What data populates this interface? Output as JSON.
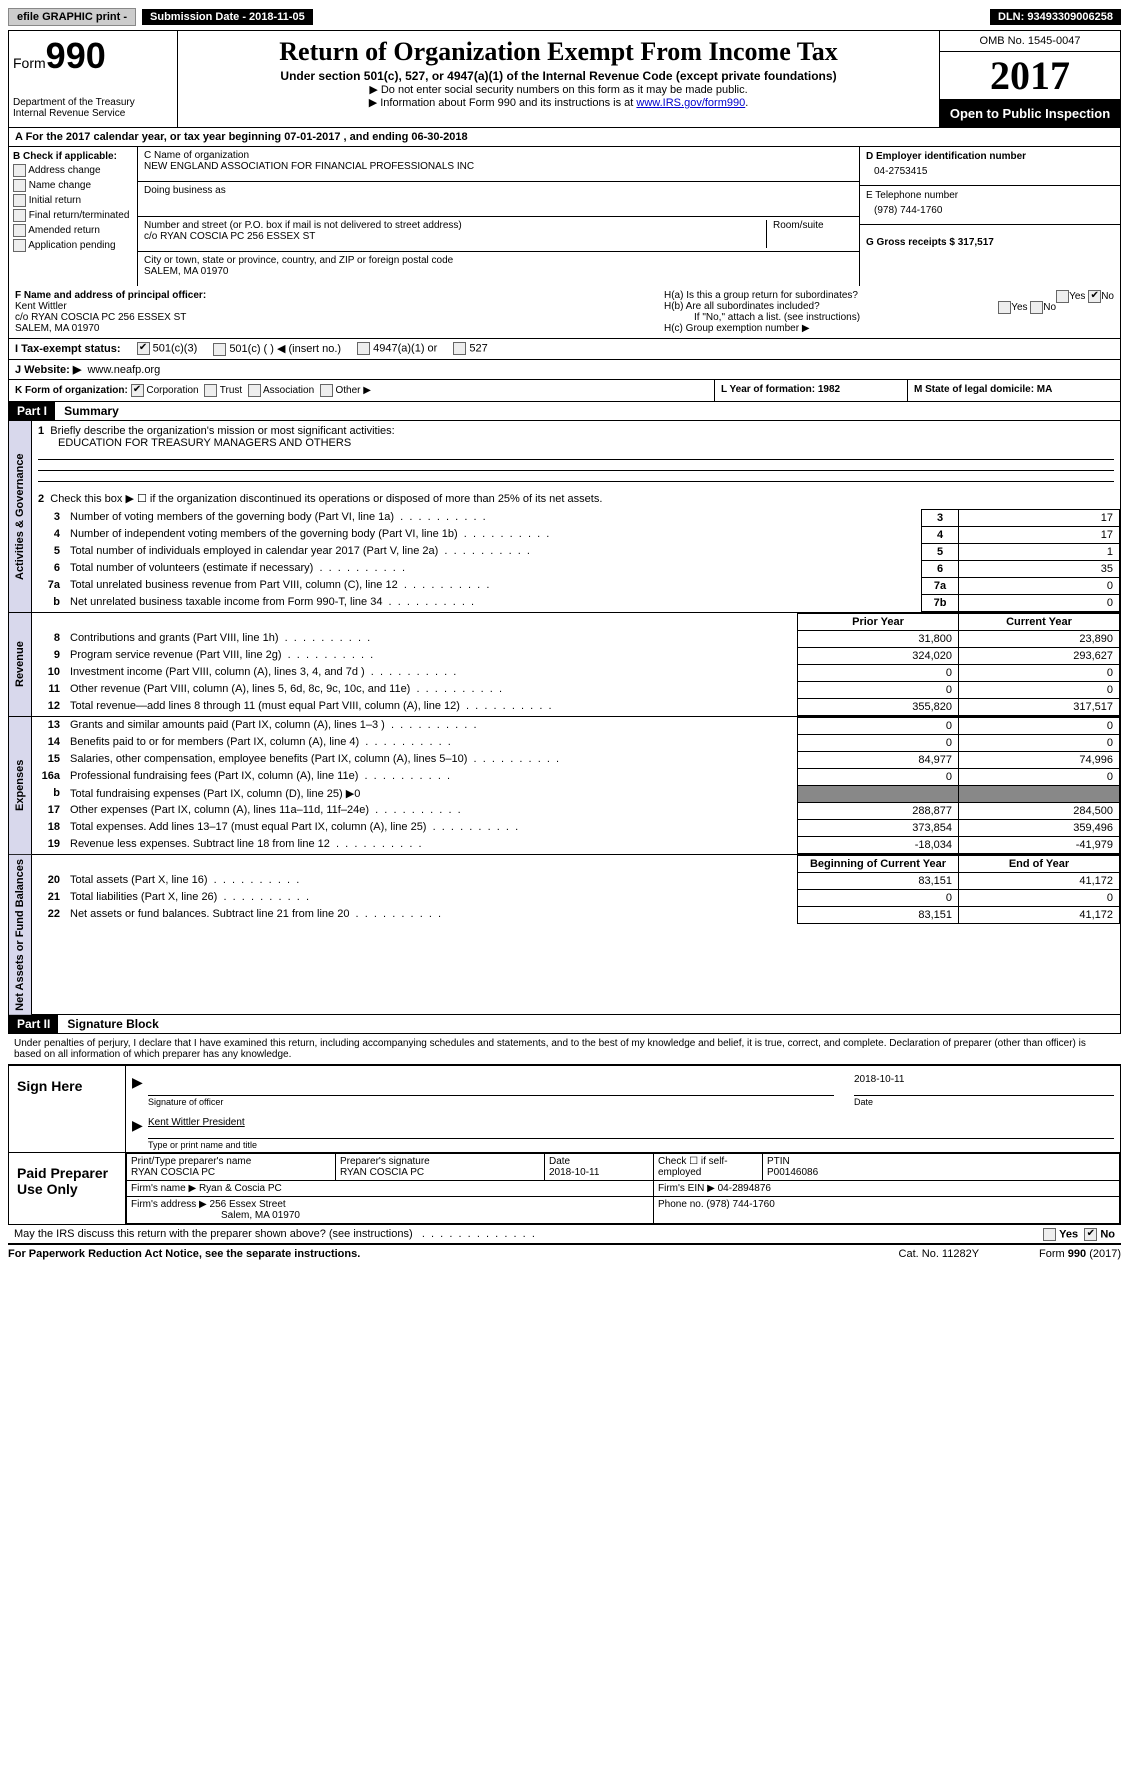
{
  "topbar": {
    "efile": "efile GRAPHIC print -",
    "submission_label": "Submission Date - 2018-11-05",
    "dln": "DLN: 93493309006258"
  },
  "header": {
    "form_label": "Form",
    "form_number": "990",
    "dept": "Department of the Treasury",
    "irs": "Internal Revenue Service",
    "title": "Return of Organization Exempt From Income Tax",
    "subtitle": "Under section 501(c), 527, or 4947(a)(1) of the Internal Revenue Code (except private foundations)",
    "note1": "▶ Do not enter social security numbers on this form as it may be made public.",
    "note2_pre": "▶ Information about Form 990 and its instructions is at ",
    "note2_link": "www.IRS.gov/form990",
    "omb": "OMB No. 1545-0047",
    "year": "2017",
    "open_public": "Open to Public Inspection"
  },
  "row_a": "A  For the 2017 calendar year, or tax year beginning 07-01-2017   , and ending 06-30-2018",
  "section_b": {
    "title": "B Check if applicable:",
    "items": [
      "Address change",
      "Name change",
      "Initial return",
      "Final return/terminated",
      "Amended return",
      "Application pending"
    ]
  },
  "section_c": {
    "name_label": "C Name of organization",
    "name": "NEW ENGLAND ASSOCIATION FOR FINANCIAL PROFESSIONALS INC",
    "dba_label": "Doing business as",
    "street_label": "Number and street (or P.O. box if mail is not delivered to street address)",
    "street": "c/o RYAN COSCIA PC 256 ESSEX ST",
    "room_label": "Room/suite",
    "city_label": "City or town, state or province, country, and ZIP or foreign postal code",
    "city": "SALEM, MA  01970"
  },
  "section_d": {
    "ein_label": "D Employer identification number",
    "ein": "04-2753415",
    "phone_label": "E Telephone number",
    "phone": "(978) 744-1760",
    "gross_label": "G Gross receipts $ 317,517"
  },
  "section_f": {
    "label": "F  Name and address of principal officer:",
    "name": "Kent Wittler",
    "addr1": "c/o RYAN COSCIA PC 256 ESSEX ST",
    "addr2": "SALEM, MA  01970"
  },
  "section_h": {
    "ha": "H(a)  Is this a group return for subordinates?",
    "hb": "H(b)  Are all subordinates included?",
    "hb_note": "If \"No,\" attach a list. (see instructions)",
    "hc": "H(c)  Group exemption number ▶",
    "yes": "Yes",
    "no": "No"
  },
  "row_i": {
    "label": "I  Tax-exempt status:",
    "opt1": "501(c)(3)",
    "opt2": "501(c) (  ) ◀ (insert no.)",
    "opt3": "4947(a)(1) or",
    "opt4": "527"
  },
  "row_j": {
    "label": "J  Website: ▶",
    "value": "www.neafp.org"
  },
  "row_k": {
    "label": "K Form of organization:",
    "opts": [
      "Corporation",
      "Trust",
      "Association",
      "Other ▶"
    ]
  },
  "row_l": "L Year of formation: 1982",
  "row_m": "M State of legal domicile: MA",
  "part1": {
    "header": "Part I",
    "title": "Summary",
    "line1_label": "Briefly describe the organization's mission or most significant activities:",
    "line1_text": "EDUCATION FOR TREASURY MANAGERS AND OTHERS",
    "line2": "Check this box ▶ ☐  if the organization discontinued its operations or disposed of more than 25% of its net assets.",
    "lines_ag": [
      {
        "n": "3",
        "t": "Number of voting members of the governing body (Part VI, line 1a)",
        "c": "3",
        "v": "17"
      },
      {
        "n": "4",
        "t": "Number of independent voting members of the governing body (Part VI, line 1b)",
        "c": "4",
        "v": "17"
      },
      {
        "n": "5",
        "t": "Total number of individuals employed in calendar year 2017 (Part V, line 2a)",
        "c": "5",
        "v": "1"
      },
      {
        "n": "6",
        "t": "Total number of volunteers (estimate if necessary)",
        "c": "6",
        "v": "35"
      },
      {
        "n": "7a",
        "t": "Total unrelated business revenue from Part VIII, column (C), line 12",
        "c": "7a",
        "v": "0"
      },
      {
        "n": "b",
        "t": "Net unrelated business taxable income from Form 990-T, line 34",
        "c": "7b",
        "v": "0"
      }
    ],
    "col_prior": "Prior Year",
    "col_current": "Current Year",
    "lines_rev": [
      {
        "n": "8",
        "t": "Contributions and grants (Part VIII, line 1h)",
        "p": "31,800",
        "c": "23,890"
      },
      {
        "n": "9",
        "t": "Program service revenue (Part VIII, line 2g)",
        "p": "324,020",
        "c": "293,627"
      },
      {
        "n": "10",
        "t": "Investment income (Part VIII, column (A), lines 3, 4, and 7d )",
        "p": "0",
        "c": "0"
      },
      {
        "n": "11",
        "t": "Other revenue (Part VIII, column (A), lines 5, 6d, 8c, 9c, 10c, and 11e)",
        "p": "0",
        "c": "0"
      },
      {
        "n": "12",
        "t": "Total revenue—add lines 8 through 11 (must equal Part VIII, column (A), line 12)",
        "p": "355,820",
        "c": "317,517"
      }
    ],
    "lines_exp": [
      {
        "n": "13",
        "t": "Grants and similar amounts paid (Part IX, column (A), lines 1–3 )",
        "p": "0",
        "c": "0"
      },
      {
        "n": "14",
        "t": "Benefits paid to or for members (Part IX, column (A), line 4)",
        "p": "0",
        "c": "0"
      },
      {
        "n": "15",
        "t": "Salaries, other compensation, employee benefits (Part IX, column (A), lines 5–10)",
        "p": "84,977",
        "c": "74,996"
      },
      {
        "n": "16a",
        "t": "Professional fundraising fees (Part IX, column (A), line 11e)",
        "p": "0",
        "c": "0"
      },
      {
        "n": "b",
        "t": "Total fundraising expenses (Part IX, column (D), line 25) ▶0",
        "shade": true
      },
      {
        "n": "17",
        "t": "Other expenses (Part IX, column (A), lines 11a–11d, 11f–24e)",
        "p": "288,877",
        "c": "284,500"
      },
      {
        "n": "18",
        "t": "Total expenses. Add lines 13–17 (must equal Part IX, column (A), line 25)",
        "p": "373,854",
        "c": "359,496"
      },
      {
        "n": "19",
        "t": "Revenue less expenses. Subtract line 18 from line 12",
        "p": "-18,034",
        "c": "-41,979"
      }
    ],
    "col_begin": "Beginning of Current Year",
    "col_end": "End of Year",
    "lines_net": [
      {
        "n": "20",
        "t": "Total assets (Part X, line 16)",
        "p": "83,151",
        "c": "41,172"
      },
      {
        "n": "21",
        "t": "Total liabilities (Part X, line 26)",
        "p": "0",
        "c": "0"
      },
      {
        "n": "22",
        "t": "Net assets or fund balances. Subtract line 21 from line 20",
        "p": "83,151",
        "c": "41,172"
      }
    ],
    "tab_ag": "Activities & Governance",
    "tab_rev": "Revenue",
    "tab_exp": "Expenses",
    "tab_net": "Net Assets or Fund Balances"
  },
  "part2": {
    "header": "Part II",
    "title": "Signature Block",
    "declaration": "Under penalties of perjury, I declare that I have examined this return, including accompanying schedules and statements, and to the best of my knowledge and belief, it is true, correct, and complete. Declaration of preparer (other than officer) is based on all information of which preparer has any knowledge.",
    "sign_here": "Sign Here",
    "sig_date": "2018-10-11",
    "sig_officer_label": "Signature of officer",
    "date_label": "Date",
    "officer_name": "Kent Wittler President",
    "officer_name_label": "Type or print name and title",
    "paid_preparer": "Paid Preparer Use Only",
    "prep_name_label": "Print/Type preparer's name",
    "prep_name": "RYAN COSCIA PC",
    "prep_sig_label": "Preparer's signature",
    "prep_sig": "RYAN COSCIA PC",
    "prep_date_label": "Date",
    "prep_date": "2018-10-11",
    "check_self": "Check ☐ if self-employed",
    "ptin_label": "PTIN",
    "ptin": "P00146086",
    "firm_name_label": "Firm's name    ▶",
    "firm_name": "Ryan & Coscia PC",
    "firm_ein_label": "Firm's EIN ▶",
    "firm_ein": "04-2894876",
    "firm_addr_label": "Firm's address ▶",
    "firm_addr1": "256 Essex Street",
    "firm_addr2": "Salem, MA  01970",
    "firm_phone_label": "Phone no.",
    "firm_phone": "(978) 744-1760",
    "discuss": "May the IRS discuss this return with the preparer shown above? (see instructions)",
    "yes": "Yes",
    "no": "No"
  },
  "footer": {
    "paperwork": "For Paperwork Reduction Act Notice, see the separate instructions.",
    "cat": "Cat. No. 11282Y",
    "form": "Form 990 (2017)"
  }
}
